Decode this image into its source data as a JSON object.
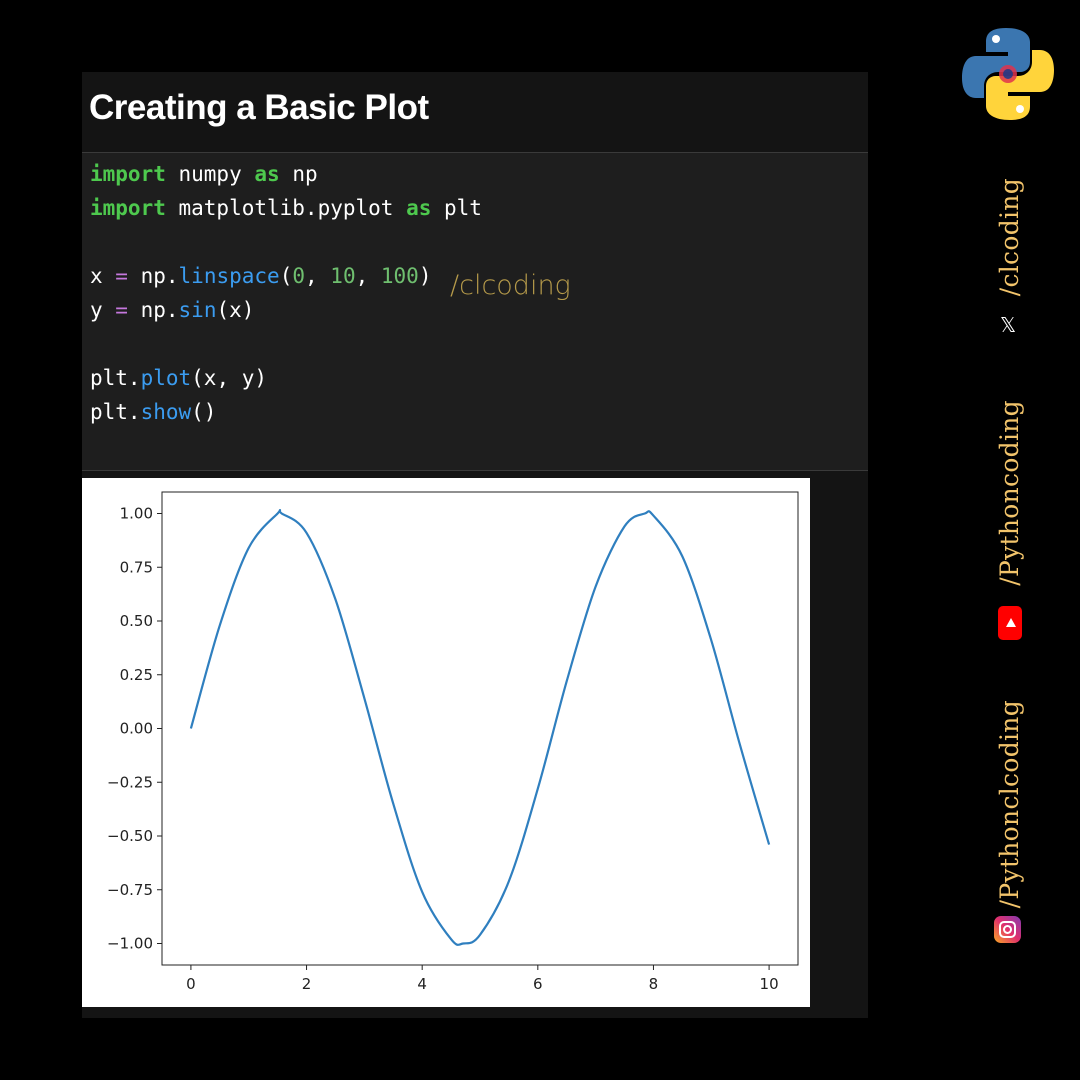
{
  "header": {
    "title": "Creating a Basic Plot"
  },
  "code": {
    "line1": {
      "kw1": "import",
      "t1": " numpy ",
      "kw2": "as",
      "t2": " np"
    },
    "line2": {
      "kw1": "import",
      "t1": " matplotlib.pyplot ",
      "kw2": "as",
      "t2": " plt"
    },
    "line3": {
      "t1": "x ",
      "op": "=",
      "t2": " np.",
      "fn": "linspace",
      "t3": "(",
      "n1": "0",
      "t4": ", ",
      "n2": "10",
      "t5": ", ",
      "n3": "100",
      "t6": ")"
    },
    "line4": {
      "t1": "y ",
      "op": "=",
      "t2": " np.",
      "fn": "sin",
      "t3": "(x)"
    },
    "line5": {
      "t1": "plt.",
      "fn": "plot",
      "t2": "(x, y)"
    },
    "line6": {
      "t1": "plt.",
      "fn": "show",
      "t2": "()"
    }
  },
  "watermark": "/clcoding",
  "sidebar": {
    "x_handle": "/clcoding",
    "youtube_handle": "/Pythoncoding",
    "instagram_handle": "/Pythonclcoding",
    "x_icon_glyph": "𝕏",
    "icons": [
      "python-logo-icon",
      "x-icon",
      "youtube-icon",
      "instagram-icon"
    ]
  },
  "colors": {
    "keyword": "#4ec94e",
    "function": "#3b9cf0",
    "operator": "#c678dd",
    "number": "#6fbf6f",
    "line": "#2f7fbf",
    "handle": "#f2c46b"
  },
  "chart_data": {
    "type": "line",
    "title": "",
    "xlabel": "",
    "ylabel": "",
    "xlim": [
      -0.5,
      10.5
    ],
    "ylim": [
      -1.1,
      1.1
    ],
    "xticks": [
      "0",
      "2",
      "4",
      "6",
      "8",
      "10"
    ],
    "xtick_values": [
      0,
      2,
      4,
      6,
      8,
      10
    ],
    "yticks": [
      "1.00",
      "0.75",
      "0.50",
      "0.25",
      "0.00",
      "−0.25",
      "−0.50",
      "−0.75",
      "−1.00"
    ],
    "ytick_values": [
      1.0,
      0.75,
      0.5,
      0.25,
      0.0,
      -0.25,
      -0.5,
      -0.75,
      -1.0
    ],
    "grid": false,
    "series": [
      {
        "x": [
          0,
          0.5,
          1.0,
          1.5,
          1.57,
          2.0,
          2.5,
          3.0,
          3.5,
          4.0,
          4.5,
          4.71,
          5.0,
          5.5,
          6.0,
          6.5,
          7.0,
          7.5,
          7.85,
          8.0,
          8.5,
          9.0,
          9.5,
          10.0
        ],
        "y": [
          0.0,
          0.48,
          0.84,
          1.0,
          1.0,
          0.91,
          0.6,
          0.14,
          -0.35,
          -0.76,
          -0.98,
          -1.0,
          -0.96,
          -0.71,
          -0.28,
          0.22,
          0.66,
          0.94,
          1.0,
          0.99,
          0.8,
          0.41,
          -0.08,
          -0.54
        ]
      }
    ]
  }
}
